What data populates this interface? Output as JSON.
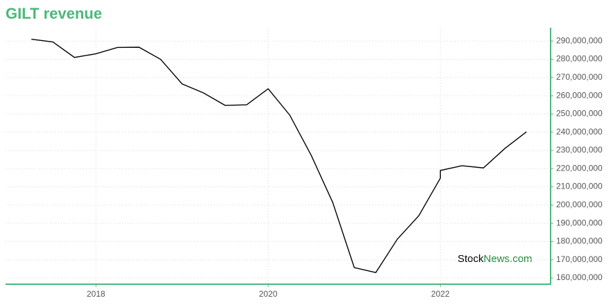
{
  "chart_data": {
    "type": "line",
    "title": "GILT revenue",
    "watermark": {
      "first": "Stock",
      "second": "News.com"
    },
    "x": [
      2017.25,
      2017.5,
      2017.75,
      2018,
      2018.25,
      2018.5,
      2018.75,
      2019,
      2019.25,
      2019.5,
      2019.75,
      2020,
      2020.25,
      2020.5,
      2020.75,
      2021,
      2021.25,
      2021.5,
      2021.75,
      2022,
      2022,
      2022.25,
      2022.5,
      2022.75,
      2023
    ],
    "series": [
      {
        "color": "#000000",
        "values": [
          291000000,
          289500000,
          281000000,
          283000000,
          286500000,
          286600000,
          280000000,
          266500000,
          261500000,
          254700000,
          255000000,
          263800000,
          249400000,
          227300000,
          201400000,
          165700000,
          163000000,
          181300000,
          194200000,
          214800000,
          219000000,
          221600000,
          220400000,
          231100000,
          240200000
        ]
      }
    ],
    "xlim": [
      2016.95,
      2023.28
    ],
    "xticks": [
      2018,
      2020,
      2022
    ],
    "ylim": [
      156600000,
      297300000
    ],
    "yticks": [
      {
        "value": 160000000,
        "label": "160,000,000"
      },
      {
        "value": 170000000,
        "label": "170,000,000"
      },
      {
        "value": 180000000,
        "label": "180,000,000"
      },
      {
        "value": 190000000,
        "label": "190,000,000"
      },
      {
        "value": 200000000,
        "label": "200,000,000"
      },
      {
        "value": 210000000,
        "label": "210,000,000"
      },
      {
        "value": 220000000,
        "label": "220,000,000"
      },
      {
        "value": 230000000,
        "label": "230,000,000"
      },
      {
        "value": 240000000,
        "label": "240,000,000"
      },
      {
        "value": 250000000,
        "label": "250,000,000"
      },
      {
        "value": 260000000,
        "label": "260,000,000"
      },
      {
        "value": 270000000,
        "label": "270,000,000"
      },
      {
        "value": 280000000,
        "label": "280,000,000"
      },
      {
        "value": 290000000,
        "label": "290,000,000"
      }
    ],
    "grid": true,
    "axis_color": "#4cb87a",
    "title_color": "#4cb87a"
  }
}
